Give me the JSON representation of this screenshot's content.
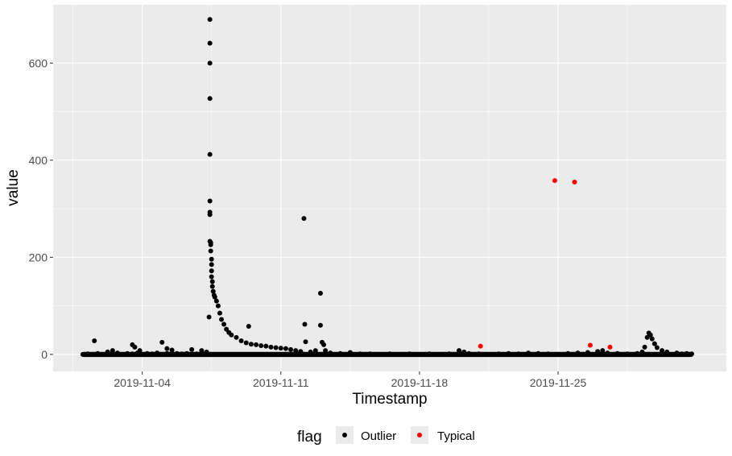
{
  "chart_data": {
    "type": "scatter",
    "title": "",
    "xlabel": "Timestamp",
    "ylabel": "value",
    "x_axis": {
      "type": "date",
      "range": [
        "2019-10-30T12:00",
        "2019-12-03T12:00"
      ],
      "ticks": [
        "2019-11-04",
        "2019-11-11",
        "2019-11-18",
        "2019-11-25"
      ],
      "tick_labels": [
        "2019-11-04",
        "2019-11-11",
        "2019-11-18",
        "2019-11-25"
      ]
    },
    "y_axis": {
      "range": [
        -35,
        720
      ],
      "ticks": [
        0,
        200,
        400,
        600
      ],
      "tick_labels": [
        "0",
        "200",
        "400",
        "600"
      ]
    },
    "grid": true,
    "legend": {
      "title": "flag",
      "position": "bottom",
      "entries": [
        {
          "label": "Outlier",
          "color": "#000000"
        },
        {
          "label": "Typical",
          "color": "#ff0000"
        }
      ]
    },
    "colors": {
      "panel_background": "#ebebeb",
      "grid_line": "#ffffff",
      "outlier": "#000000",
      "typical": "#ff0000"
    },
    "series": [
      {
        "name": "Outlier",
        "color": "#000000",
        "points": [
          [
            "2019-11-01T00:00",
            0
          ],
          [
            "2019-11-01T06:00",
            1
          ],
          [
            "2019-11-01T12:00",
            0
          ],
          [
            "2019-11-01T14:00",
            28
          ],
          [
            "2019-11-01T18:00",
            2
          ],
          [
            "2019-11-02T00:00",
            0
          ],
          [
            "2019-11-02T06:00",
            5
          ],
          [
            "2019-11-02T12:00",
            8
          ],
          [
            "2019-11-02T18:00",
            3
          ],
          [
            "2019-11-03T00:00",
            0
          ],
          [
            "2019-11-03T06:00",
            2
          ],
          [
            "2019-11-03T12:00",
            1
          ],
          [
            "2019-11-03T18:00",
            3
          ],
          [
            "2019-11-04T00:00",
            0
          ],
          [
            "2019-11-04T06:00",
            2
          ],
          [
            "2019-11-04T12:00",
            1
          ],
          [
            "2019-11-04T18:00",
            3
          ],
          [
            "2019-11-05T00:00",
            0
          ],
          [
            "2019-11-05T06:00",
            2
          ],
          [
            "2019-11-05T12:00",
            3
          ],
          [
            "2019-11-05T18:00",
            2
          ],
          [
            "2019-11-06T00:00",
            1
          ],
          [
            "2019-11-06T06:00",
            2
          ],
          [
            "2019-11-06T12:00",
            0
          ],
          [
            "2019-11-06T18:00",
            1
          ],
          [
            "2019-11-03T12:00",
            20
          ],
          [
            "2019-11-03T15:00",
            15
          ],
          [
            "2019-11-03T21:00",
            8
          ],
          [
            "2019-11-05T00:00",
            25
          ],
          [
            "2019-11-05T06:00",
            12
          ],
          [
            "2019-11-05T12:00",
            9
          ],
          [
            "2019-11-06T12:00",
            10
          ],
          [
            "2019-11-07T00:00",
            8
          ],
          [
            "2019-11-07T06:00",
            5
          ],
          [
            "2019-11-07T09:00",
            77
          ],
          [
            "2019-11-07T10:00",
            690
          ],
          [
            "2019-11-07T10:00",
            641
          ],
          [
            "2019-11-07T10:00",
            600
          ],
          [
            "2019-11-07T10:00",
            527
          ],
          [
            "2019-11-07T10:00",
            412
          ],
          [
            "2019-11-07T10:00",
            316
          ],
          [
            "2019-11-07T10:00",
            293
          ],
          [
            "2019-11-07T10:00",
            288
          ],
          [
            "2019-11-07T10:00",
            233
          ],
          [
            "2019-11-07T11:00",
            230
          ],
          [
            "2019-11-07T11:00",
            226
          ],
          [
            "2019-11-07T11:00",
            213
          ],
          [
            "2019-11-07T12:00",
            196
          ],
          [
            "2019-11-07T12:00",
            185
          ],
          [
            "2019-11-07T12:00",
            172
          ],
          [
            "2019-11-07T12:00",
            160
          ],
          [
            "2019-11-07T13:00",
            150
          ],
          [
            "2019-11-07T13:00",
            140
          ],
          [
            "2019-11-07T14:00",
            130
          ],
          [
            "2019-11-07T15:00",
            122
          ],
          [
            "2019-11-07T16:00",
            118
          ],
          [
            "2019-11-07T18:00",
            110
          ],
          [
            "2019-11-07T20:00",
            100
          ],
          [
            "2019-11-07T22:00",
            85
          ],
          [
            "2019-11-08T00:00",
            72
          ],
          [
            "2019-11-08T03:00",
            62
          ],
          [
            "2019-11-08T06:00",
            52
          ],
          [
            "2019-11-08T09:00",
            45
          ],
          [
            "2019-11-08T12:00",
            40
          ],
          [
            "2019-11-08T18:00",
            35
          ],
          [
            "2019-11-09T00:00",
            28
          ],
          [
            "2019-11-09T06:00",
            24
          ],
          [
            "2019-11-09T09:00",
            58
          ],
          [
            "2019-11-09T12:00",
            21
          ],
          [
            "2019-11-09T18:00",
            20
          ],
          [
            "2019-11-10T00:00",
            18
          ],
          [
            "2019-11-10T06:00",
            17
          ],
          [
            "2019-11-10T12:00",
            15
          ],
          [
            "2019-11-10T18:00",
            14
          ],
          [
            "2019-11-11T00:00",
            13
          ],
          [
            "2019-11-11T06:00",
            12
          ],
          [
            "2019-11-11T12:00",
            10
          ],
          [
            "2019-11-11T18:00",
            8
          ],
          [
            "2019-11-12T00:00",
            6
          ],
          [
            "2019-11-12T04:00",
            280
          ],
          [
            "2019-11-12T05:00",
            62
          ],
          [
            "2019-11-12T06:00",
            26
          ],
          [
            "2019-11-12T12:00",
            5
          ],
          [
            "2019-11-12T18:00",
            8
          ],
          [
            "2019-11-13T00:00",
            126
          ],
          [
            "2019-11-13T00:00",
            60
          ],
          [
            "2019-11-13T02:00",
            25
          ],
          [
            "2019-11-13T04:00",
            20
          ],
          [
            "2019-11-13T06:00",
            8
          ],
          [
            "2019-11-13T12:00",
            3
          ],
          [
            "2019-11-14T00:00",
            2
          ],
          [
            "2019-11-14T12:00",
            4
          ],
          [
            "2019-11-15T00:00",
            1
          ],
          [
            "2019-11-15T12:00",
            1
          ],
          [
            "2019-11-16T00:00",
            0
          ],
          [
            "2019-11-16T12:00",
            1
          ],
          [
            "2019-11-17T00:00",
            0
          ],
          [
            "2019-11-17T12:00",
            1
          ],
          [
            "2019-11-18T00:00",
            0
          ],
          [
            "2019-11-18T12:00",
            1
          ],
          [
            "2019-11-19T00:00",
            0
          ],
          [
            "2019-11-19T12:00",
            1
          ],
          [
            "2019-11-20T00:00",
            8
          ],
          [
            "2019-11-20T06:00",
            5
          ],
          [
            "2019-11-20T12:00",
            2
          ],
          [
            "2019-11-21T00:00",
            1
          ],
          [
            "2019-11-21T12:00",
            0
          ],
          [
            "2019-11-22T00:00",
            1
          ],
          [
            "2019-11-22T12:00",
            2
          ],
          [
            "2019-11-23T00:00",
            1
          ],
          [
            "2019-11-23T12:00",
            3
          ],
          [
            "2019-11-24T00:00",
            2
          ],
          [
            "2019-11-24T12:00",
            1
          ],
          [
            "2019-11-25T00:00",
            0
          ],
          [
            "2019-11-25T12:00",
            2
          ],
          [
            "2019-11-26T00:00",
            3
          ],
          [
            "2019-11-26T12:00",
            4
          ],
          [
            "2019-11-27T00:00",
            6
          ],
          [
            "2019-11-27T06:00",
            8
          ],
          [
            "2019-11-27T12:00",
            3
          ],
          [
            "2019-11-28T00:00",
            2
          ],
          [
            "2019-11-28T12:00",
            1
          ],
          [
            "2019-11-29T00:00",
            2
          ],
          [
            "2019-11-29T06:00",
            5
          ],
          [
            "2019-11-29T09:00",
            15
          ],
          [
            "2019-11-29T12:00",
            35
          ],
          [
            "2019-11-29T14:00",
            44
          ],
          [
            "2019-11-29T16:00",
            40
          ],
          [
            "2019-11-29T18:00",
            32
          ],
          [
            "2019-11-29T21:00",
            22
          ],
          [
            "2019-11-30T00:00",
            14
          ],
          [
            "2019-11-30T06:00",
            8
          ],
          [
            "2019-11-30T12:00",
            5
          ],
          [
            "2019-12-01T00:00",
            3
          ],
          [
            "2019-12-01T06:00",
            1
          ],
          [
            "2019-12-01T12:00",
            2
          ],
          [
            "2019-12-01T18:00",
            1
          ]
        ]
      },
      {
        "name": "Typical",
        "color": "#ff0000",
        "points": [
          [
            "2019-11-21T02:00",
            17
          ],
          [
            "2019-11-24T20:00",
            358
          ],
          [
            "2019-11-25T20:00",
            355
          ],
          [
            "2019-11-26T15:00",
            19
          ],
          [
            "2019-11-27T15:00",
            15
          ]
        ]
      }
    ]
  }
}
